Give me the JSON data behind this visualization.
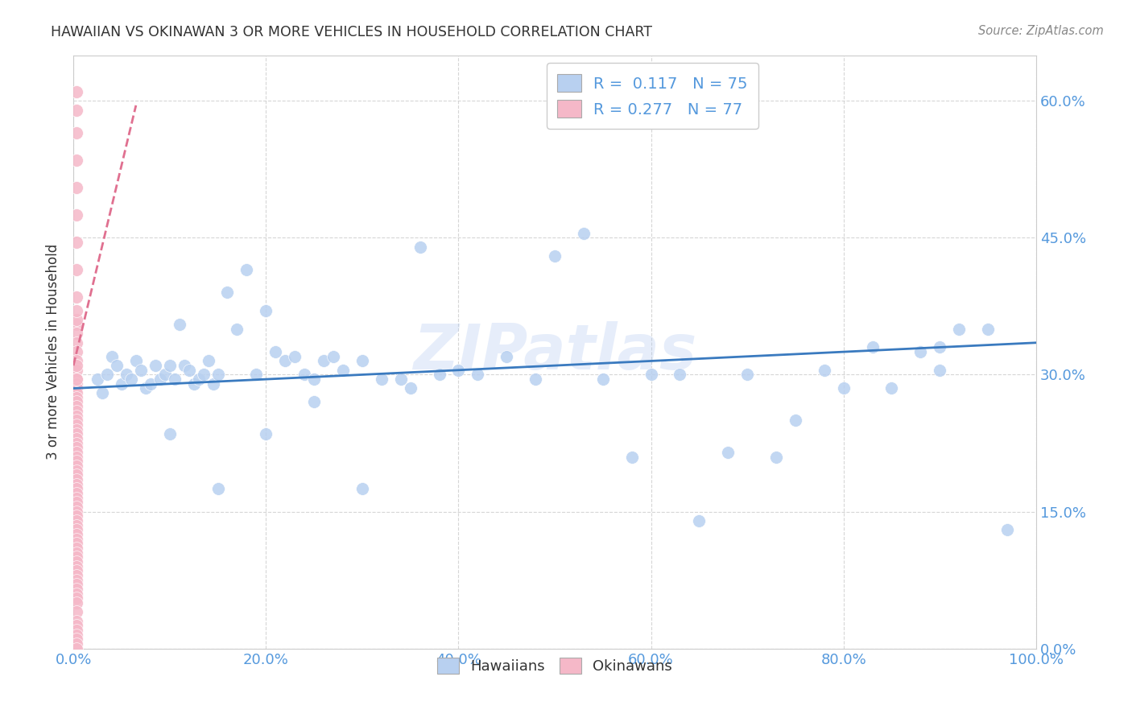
{
  "title": "HAWAIIAN VS OKINAWAN 3 OR MORE VEHICLES IN HOUSEHOLD CORRELATION CHART",
  "source": "Source: ZipAtlas.com",
  "ylabel_label": "3 or more Vehicles in Household",
  "legend_entries": [
    {
      "label": "Hawaiians",
      "R": "0.117",
      "N": "75",
      "color": "#b8d0f0"
    },
    {
      "label": "Okinawans",
      "R": "0.277",
      "N": "77",
      "color": "#f5b8c8"
    }
  ],
  "watermark": "ZIPatlas",
  "hawaiian_x": [
    0.025,
    0.03,
    0.035,
    0.04,
    0.045,
    0.05,
    0.055,
    0.06,
    0.065,
    0.07,
    0.075,
    0.08,
    0.085,
    0.09,
    0.095,
    0.1,
    0.105,
    0.11,
    0.115,
    0.12,
    0.125,
    0.13,
    0.135,
    0.14,
    0.145,
    0.15,
    0.16,
    0.17,
    0.18,
    0.19,
    0.2,
    0.21,
    0.22,
    0.23,
    0.24,
    0.25,
    0.26,
    0.27,
    0.28,
    0.3,
    0.32,
    0.34,
    0.36,
    0.38,
    0.4,
    0.42,
    0.45,
    0.48,
    0.5,
    0.53,
    0.55,
    0.58,
    0.6,
    0.63,
    0.65,
    0.68,
    0.7,
    0.73,
    0.75,
    0.78,
    0.8,
    0.83,
    0.85,
    0.88,
    0.9,
    0.92,
    0.95,
    0.97,
    0.1,
    0.15,
    0.2,
    0.25,
    0.3,
    0.35,
    0.9
  ],
  "hawaiian_y": [
    0.295,
    0.28,
    0.3,
    0.32,
    0.31,
    0.29,
    0.3,
    0.295,
    0.315,
    0.305,
    0.285,
    0.29,
    0.31,
    0.295,
    0.3,
    0.31,
    0.295,
    0.355,
    0.31,
    0.305,
    0.29,
    0.295,
    0.3,
    0.315,
    0.29,
    0.3,
    0.39,
    0.35,
    0.415,
    0.3,
    0.37,
    0.325,
    0.315,
    0.32,
    0.3,
    0.295,
    0.315,
    0.32,
    0.305,
    0.315,
    0.295,
    0.295,
    0.44,
    0.3,
    0.305,
    0.3,
    0.32,
    0.295,
    0.43,
    0.455,
    0.295,
    0.21,
    0.3,
    0.3,
    0.14,
    0.215,
    0.3,
    0.21,
    0.25,
    0.305,
    0.285,
    0.33,
    0.285,
    0.325,
    0.305,
    0.35,
    0.35,
    0.13,
    0.235,
    0.175,
    0.235,
    0.27,
    0.175,
    0.285,
    0.33
  ],
  "okinawan_x": [
    0.003,
    0.003,
    0.003,
    0.003,
    0.003,
    0.003,
    0.003,
    0.003,
    0.003,
    0.003,
    0.003,
    0.003,
    0.003,
    0.003,
    0.003,
    0.003,
    0.003,
    0.003,
    0.003,
    0.003,
    0.003,
    0.003,
    0.003,
    0.003,
    0.003,
    0.003,
    0.003,
    0.003,
    0.003,
    0.003,
    0.003,
    0.003,
    0.003,
    0.003,
    0.003,
    0.003,
    0.003,
    0.003,
    0.003,
    0.003,
    0.003,
    0.003,
    0.003,
    0.003,
    0.003,
    0.003,
    0.003,
    0.003,
    0.003,
    0.003,
    0.003,
    0.003,
    0.003,
    0.003,
    0.003,
    0.003,
    0.003,
    0.003,
    0.003,
    0.003,
    0.003,
    0.003,
    0.003,
    0.003,
    0.003,
    0.003,
    0.003,
    0.003,
    0.003,
    0.003,
    0.003,
    0.003,
    0.003,
    0.003,
    0.003,
    0.003,
    0.003
  ],
  "okinawan_y": [
    0.61,
    0.59,
    0.565,
    0.535,
    0.505,
    0.475,
    0.445,
    0.415,
    0.385,
    0.355,
    0.36,
    0.37,
    0.345,
    0.335,
    0.325,
    0.315,
    0.305,
    0.295,
    0.29,
    0.285,
    0.28,
    0.275,
    0.27,
    0.265,
    0.26,
    0.255,
    0.25,
    0.245,
    0.24,
    0.235,
    0.23,
    0.225,
    0.22,
    0.215,
    0.21,
    0.205,
    0.2,
    0.195,
    0.19,
    0.185,
    0.18,
    0.175,
    0.17,
    0.165,
    0.16,
    0.155,
    0.15,
    0.145,
    0.14,
    0.135,
    0.13,
    0.125,
    0.12,
    0.115,
    0.11,
    0.105,
    0.1,
    0.095,
    0.09,
    0.085,
    0.08,
    0.075,
    0.07,
    0.065,
    0.06,
    0.055,
    0.05,
    0.04,
    0.03,
    0.025,
    0.02,
    0.015,
    0.01,
    0.005,
    0.0,
    0.31,
    0.295
  ],
  "hawaiian_trend": [
    0.0,
    1.0,
    0.285,
    0.335
  ],
  "okinawan_trend_x": [
    0.0,
    0.065
  ],
  "okinawan_trend_y": [
    0.31,
    0.595
  ],
  "xlim": [
    0.0,
    1.0
  ],
  "ylim": [
    0.0,
    0.65
  ],
  "x_ticks": [
    0.0,
    0.2,
    0.4,
    0.6,
    0.8,
    1.0
  ],
  "x_tick_labels": [
    "0.0%",
    "20.0%",
    "40.0%",
    "60.0%",
    "80.0%",
    "100.0%"
  ],
  "y_ticks": [
    0.0,
    0.15,
    0.3,
    0.45,
    0.6
  ],
  "y_tick_labels": [
    "0.0%",
    "15.0%",
    "30.0%",
    "45.0%",
    "60.0%"
  ],
  "background_color": "#ffffff",
  "grid_color": "#cccccc",
  "hawaiian_line_color": "#3a7abf",
  "okinawan_line_color": "#e07090",
  "title_color": "#333333",
  "tick_label_color": "#5599dd",
  "source_color": "#888888"
}
